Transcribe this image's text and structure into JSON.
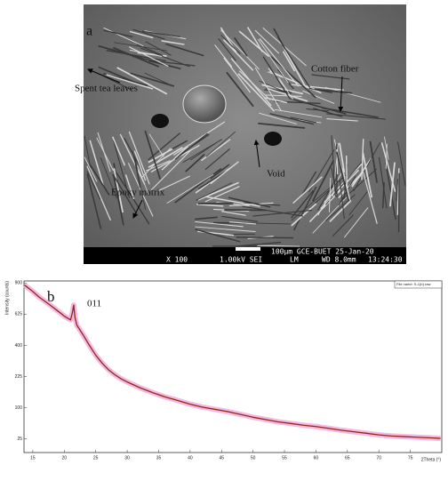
{
  "sem": {
    "panel_label": "a",
    "labels": [
      "Spent tea leaves",
      "Cotton fiber",
      "Void",
      "Epoxy matrix"
    ],
    "info_bar": [
      "100µm GCE-BUET 25-Jan-20",
      "X 100",
      "1.00kV SEI",
      "LM",
      "WD 8.0mm",
      "13:24:30"
    ]
  },
  "chart_data": {
    "type": "line",
    "panel_label": "b",
    "annotation": "011",
    "y_label": "Intensity (counts)",
    "x_label": "2Theta (°)",
    "legend_text": "File name: S-1(b).raw",
    "yscale": "sqrt",
    "grid": false,
    "xlim": [
      13.6,
      80
    ],
    "xticks": [
      15,
      20,
      25,
      30,
      35,
      40,
      45,
      50,
      55,
      60,
      65,
      70,
      75
    ],
    "ylim": [
      8,
      920
    ],
    "yticks": [
      25,
      100,
      225,
      400,
      625,
      900
    ],
    "x": [
      13.7,
      15,
      16,
      17,
      18,
      19,
      20,
      21,
      21.3,
      21.5,
      21.7,
      22,
      23,
      24,
      25,
      26,
      27,
      28,
      29,
      30,
      32,
      34,
      36,
      38,
      40,
      42,
      44,
      46,
      48,
      50,
      52,
      54,
      56,
      58,
      60,
      62,
      64,
      66,
      68,
      70,
      72,
      74,
      76,
      78,
      79.8
    ],
    "series": [
      {
        "color": "#8a2a16",
        "values": [
          880,
          820,
          770,
          730,
          690,
          650,
          610,
          580,
          640,
          700,
          600,
          540,
          470,
          400,
          340,
          295,
          260,
          235,
          215,
          200,
          175,
          155,
          138,
          125,
          112,
          102,
          95,
          88,
          80,
          72,
          66,
          60,
          56,
          52,
          49,
          45,
          41,
          38,
          35,
          32,
          30,
          29,
          28,
          27,
          26
        ]
      }
    ]
  }
}
